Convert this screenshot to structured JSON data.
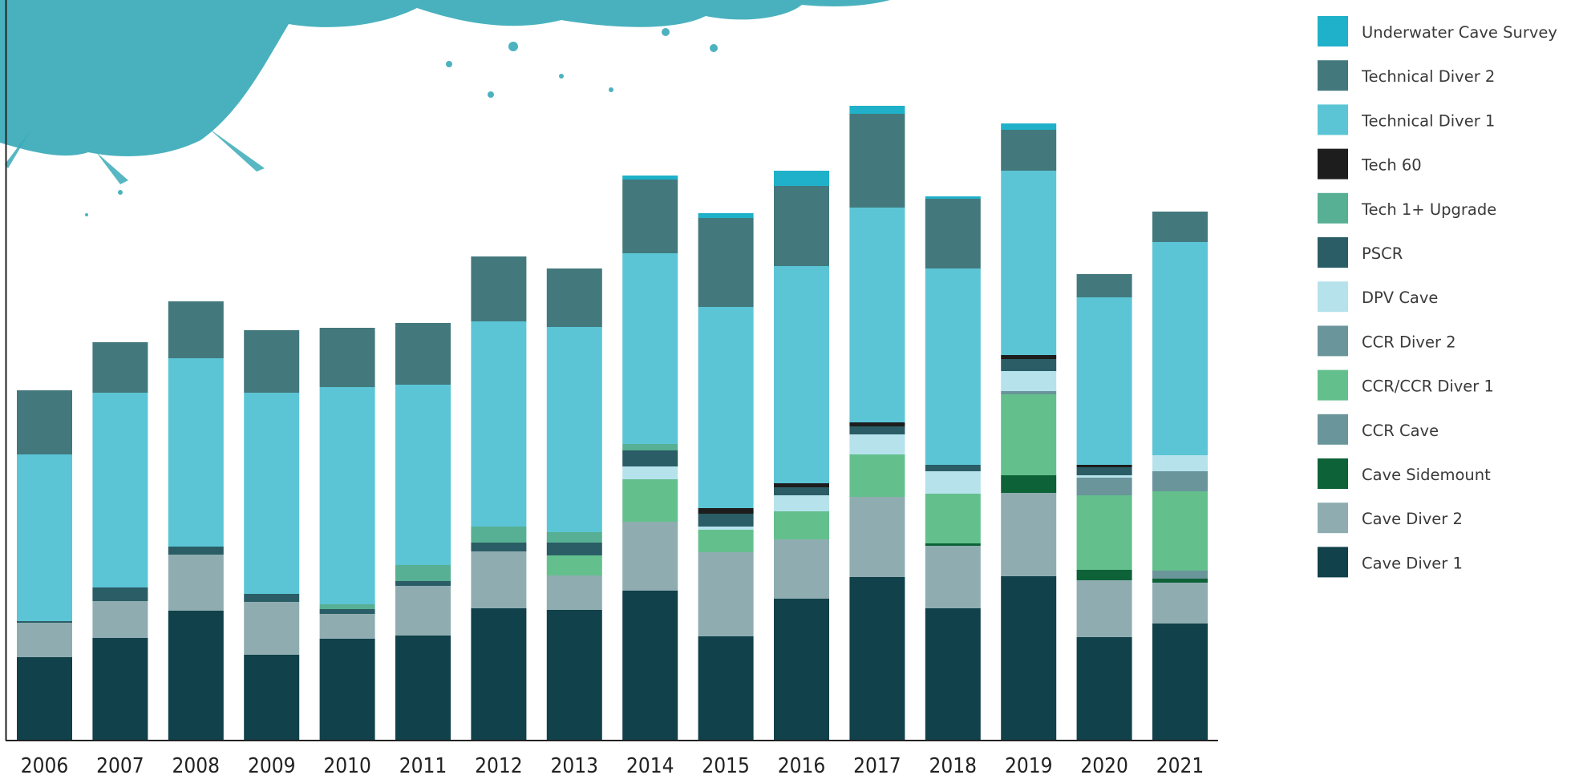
{
  "chart_data": {
    "type": "bar",
    "stacked": true,
    "title": "",
    "xlabel": "",
    "ylabel": "",
    "ylim": [
      0,
      815
    ],
    "grid": false,
    "legend_position": "right",
    "categories": [
      "2006",
      "2007",
      "2008",
      "2009",
      "2010",
      "2011",
      "2012",
      "2013",
      "2014",
      "2015",
      "2016",
      "2017",
      "2018",
      "2019",
      "2020",
      "2021"
    ],
    "series": [
      {
        "name": "Cave Diver 1",
        "color": "#11414a",
        "values": [
          103,
          127,
          161,
          106,
          126,
          130,
          164,
          162,
          186,
          129,
          176,
          203,
          164,
          204,
          128,
          145
        ]
      },
      {
        "name": "Cave Diver 2",
        "color": "#8fadb1",
        "values": [
          43,
          46,
          70,
          66,
          31,
          62,
          71,
          43,
          86,
          105,
          74,
          100,
          78,
          104,
          71,
          51
        ]
      },
      {
        "name": "Cave Sidemount",
        "color": "#0e6238",
        "values": [
          0,
          0,
          0,
          0,
          0,
          0,
          0,
          0,
          0,
          0,
          0,
          0,
          3,
          22,
          13,
          5
        ]
      },
      {
        "name": "CCR Cave",
        "color": "#6a959b",
        "values": [
          0,
          0,
          0,
          0,
          0,
          0,
          0,
          0,
          0,
          0,
          0,
          0,
          0,
          0,
          0,
          10
        ]
      },
      {
        "name": "CCR/CCR Diver 1",
        "color": "#63c08d",
        "values": [
          0,
          0,
          0,
          0,
          0,
          0,
          0,
          25,
          53,
          28,
          35,
          53,
          62,
          101,
          93,
          99
        ]
      },
      {
        "name": "CCR Diver 2",
        "color": "#6a959b",
        "values": [
          0,
          0,
          0,
          0,
          0,
          0,
          0,
          0,
          0,
          0,
          0,
          0,
          0,
          4,
          22,
          25
        ]
      },
      {
        "name": "DPV Cave",
        "color": "#b6e2ec",
        "values": [
          0,
          0,
          0,
          0,
          0,
          0,
          0,
          0,
          16,
          4,
          20,
          25,
          28,
          25,
          3,
          20
        ]
      },
      {
        "name": "PSCR",
        "color": "#2b5d66",
        "values": [
          2,
          17,
          10,
          10,
          6,
          6,
          11,
          16,
          20,
          16,
          10,
          10,
          8,
          15,
          10,
          0
        ]
      },
      {
        "name": "Tech 1+ Upgrade",
        "color": "#57b093",
        "values": [
          0,
          0,
          0,
          0,
          6,
          20,
          20,
          13,
          8,
          0,
          0,
          0,
          0,
          0,
          0,
          0
        ]
      },
      {
        "name": "Tech 60",
        "color": "#1d1d1d",
        "values": [
          0,
          0,
          0,
          0,
          0,
          0,
          0,
          0,
          0,
          7,
          5,
          5,
          0,
          5,
          3,
          0
        ]
      },
      {
        "name": "Technical Diver 1",
        "color": "#5bc5d6",
        "values": [
          208,
          243,
          235,
          251,
          271,
          225,
          256,
          256,
          238,
          251,
          271,
          268,
          245,
          230,
          209,
          266
        ]
      },
      {
        "name": "Technical Diver 2",
        "color": "#43797d",
        "values": [
          80,
          63,
          71,
          78,
          74,
          77,
          81,
          73,
          92,
          111,
          100,
          117,
          87,
          51,
          29,
          38
        ]
      },
      {
        "name": "Underwater Cave Survey",
        "color": "#1fb1c9",
        "values": [
          0,
          0,
          0,
          0,
          0,
          0,
          0,
          0,
          5,
          6,
          19,
          10,
          3,
          8,
          0,
          0
        ]
      }
    ]
  },
  "legend_order": [
    "Underwater Cave Survey",
    "Technical Diver 2",
    "Technical Diver 1",
    "Tech 60",
    "Tech 1+ Upgrade",
    "PSCR",
    "DPV Cave",
    "CCR Diver 2",
    "CCR/CCR Diver 1",
    "CCR Cave",
    "Cave Sidemount",
    "Cave Diver 2",
    "Cave Diver 1"
  ],
  "legend_colors": {
    "Underwater Cave Survey": "#1fb1c9",
    "Technical Diver 2": "#43797d",
    "Technical Diver 1": "#5bc5d6",
    "Tech 60": "#1d1d1d",
    "Tech 1+ Upgrade": "#57b093",
    "PSCR": "#2b5d66",
    "DPV Cave": "#b6e2ec",
    "CCR Diver 2": "#6a959b",
    "CCR/CCR Diver 1": "#63c08d",
    "CCR Cave": "#6a959b",
    "Cave Sidemount": "#0e6238",
    "Cave Diver 2": "#8fadb1",
    "Cave Diver 1": "#11414a"
  },
  "decoration": {
    "splash_color": "#3aaab8"
  }
}
